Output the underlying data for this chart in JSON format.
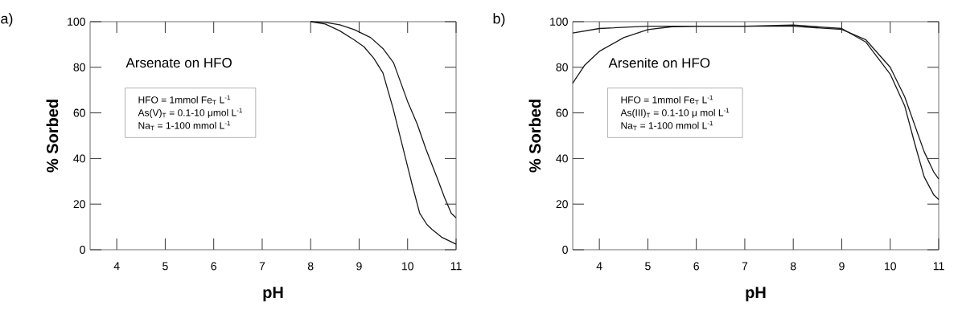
{
  "chart_data": [
    {
      "type": "line",
      "title": "a)",
      "xlabel": "pH",
      "ylabel": "% Sorbed",
      "xlim": [
        3.45,
        11
      ],
      "ylim": [
        0,
        100
      ],
      "xticks": [
        4,
        5,
        6,
        7,
        8,
        9,
        10,
        11
      ],
      "yticks": [
        0,
        20,
        40,
        60,
        80,
        100
      ],
      "annotations": [
        "Arsenate on HFO",
        "HFO = 1mmol Fe$_{T}$ L$^{-1}$",
        "As(V)$_{T}$ = 0.1-10 μmol L$^{-1}$",
        "Na$_{T}$ = 1-100 mmol L$^{-1}$"
      ],
      "series": [
        {
          "color": "#1a1a1a",
          "x": [
            8,
            8.3,
            8.6,
            8.9,
            9.1,
            9.3,
            9.49,
            9.7,
            9.9,
            10.1,
            10.25,
            10.4,
            10.5,
            10.7,
            10.9,
            11
          ],
          "values": [
            100,
            99,
            96,
            92,
            89,
            84,
            77.6,
            62,
            45,
            28,
            16,
            11,
            9,
            5.5,
            3.5,
            2.4
          ]
        },
        {
          "color": "#1a1a1a",
          "x": [
            8,
            8.3,
            8.6,
            8.9,
            9.24,
            9.5,
            9.71,
            10,
            10.2,
            10.38,
            10.6,
            10.76,
            10.9,
            11
          ],
          "values": [
            100,
            99.7,
            98.6,
            96.5,
            93,
            88,
            82,
            65,
            55,
            44,
            32,
            23,
            16,
            14
          ]
        }
      ]
    },
    {
      "type": "line",
      "title": "b)",
      "xlabel": "pH",
      "ylabel": "% Sorbed",
      "xlim": [
        3.45,
        11
      ],
      "ylim": [
        0,
        100
      ],
      "xticks": [
        4,
        5,
        6,
        7,
        8,
        9,
        10,
        11
      ],
      "yticks": [
        0,
        20,
        40,
        60,
        80,
        100
      ],
      "annotations": [
        "Arsenite on HFO",
        "HFO = 1mmol Fe$_{T}$ L$^{-1}$",
        "As(III)$_{T}$ = 0.1-10 μ mol L$^{-1}$",
        "Na$_{T}$ = 1-100 mmol L$^{-1}$"
      ],
      "series": [
        {
          "color": "#1a1a1a",
          "x": [
            3.45,
            4,
            5,
            6,
            7,
            8,
            9,
            9.5,
            10,
            10.3,
            10.5,
            10.7,
            10.9,
            11
          ],
          "values": [
            95,
            97,
            98,
            98,
            98,
            98,
            96.6,
            92,
            80,
            67,
            55,
            43,
            34,
            31
          ]
        },
        {
          "color": "#1a1a1a",
          "x": [
            3.45,
            3.7,
            4,
            4.5,
            5,
            5.5,
            6,
            7,
            8,
            9,
            9.5,
            10,
            10.3,
            10.5,
            10.7,
            10.9,
            11
          ],
          "values": [
            73,
            81,
            87,
            93,
            96.5,
            97.8,
            98,
            98,
            98.5,
            97,
            91,
            77,
            63,
            47,
            32,
            24,
            22
          ]
        }
      ]
    }
  ]
}
